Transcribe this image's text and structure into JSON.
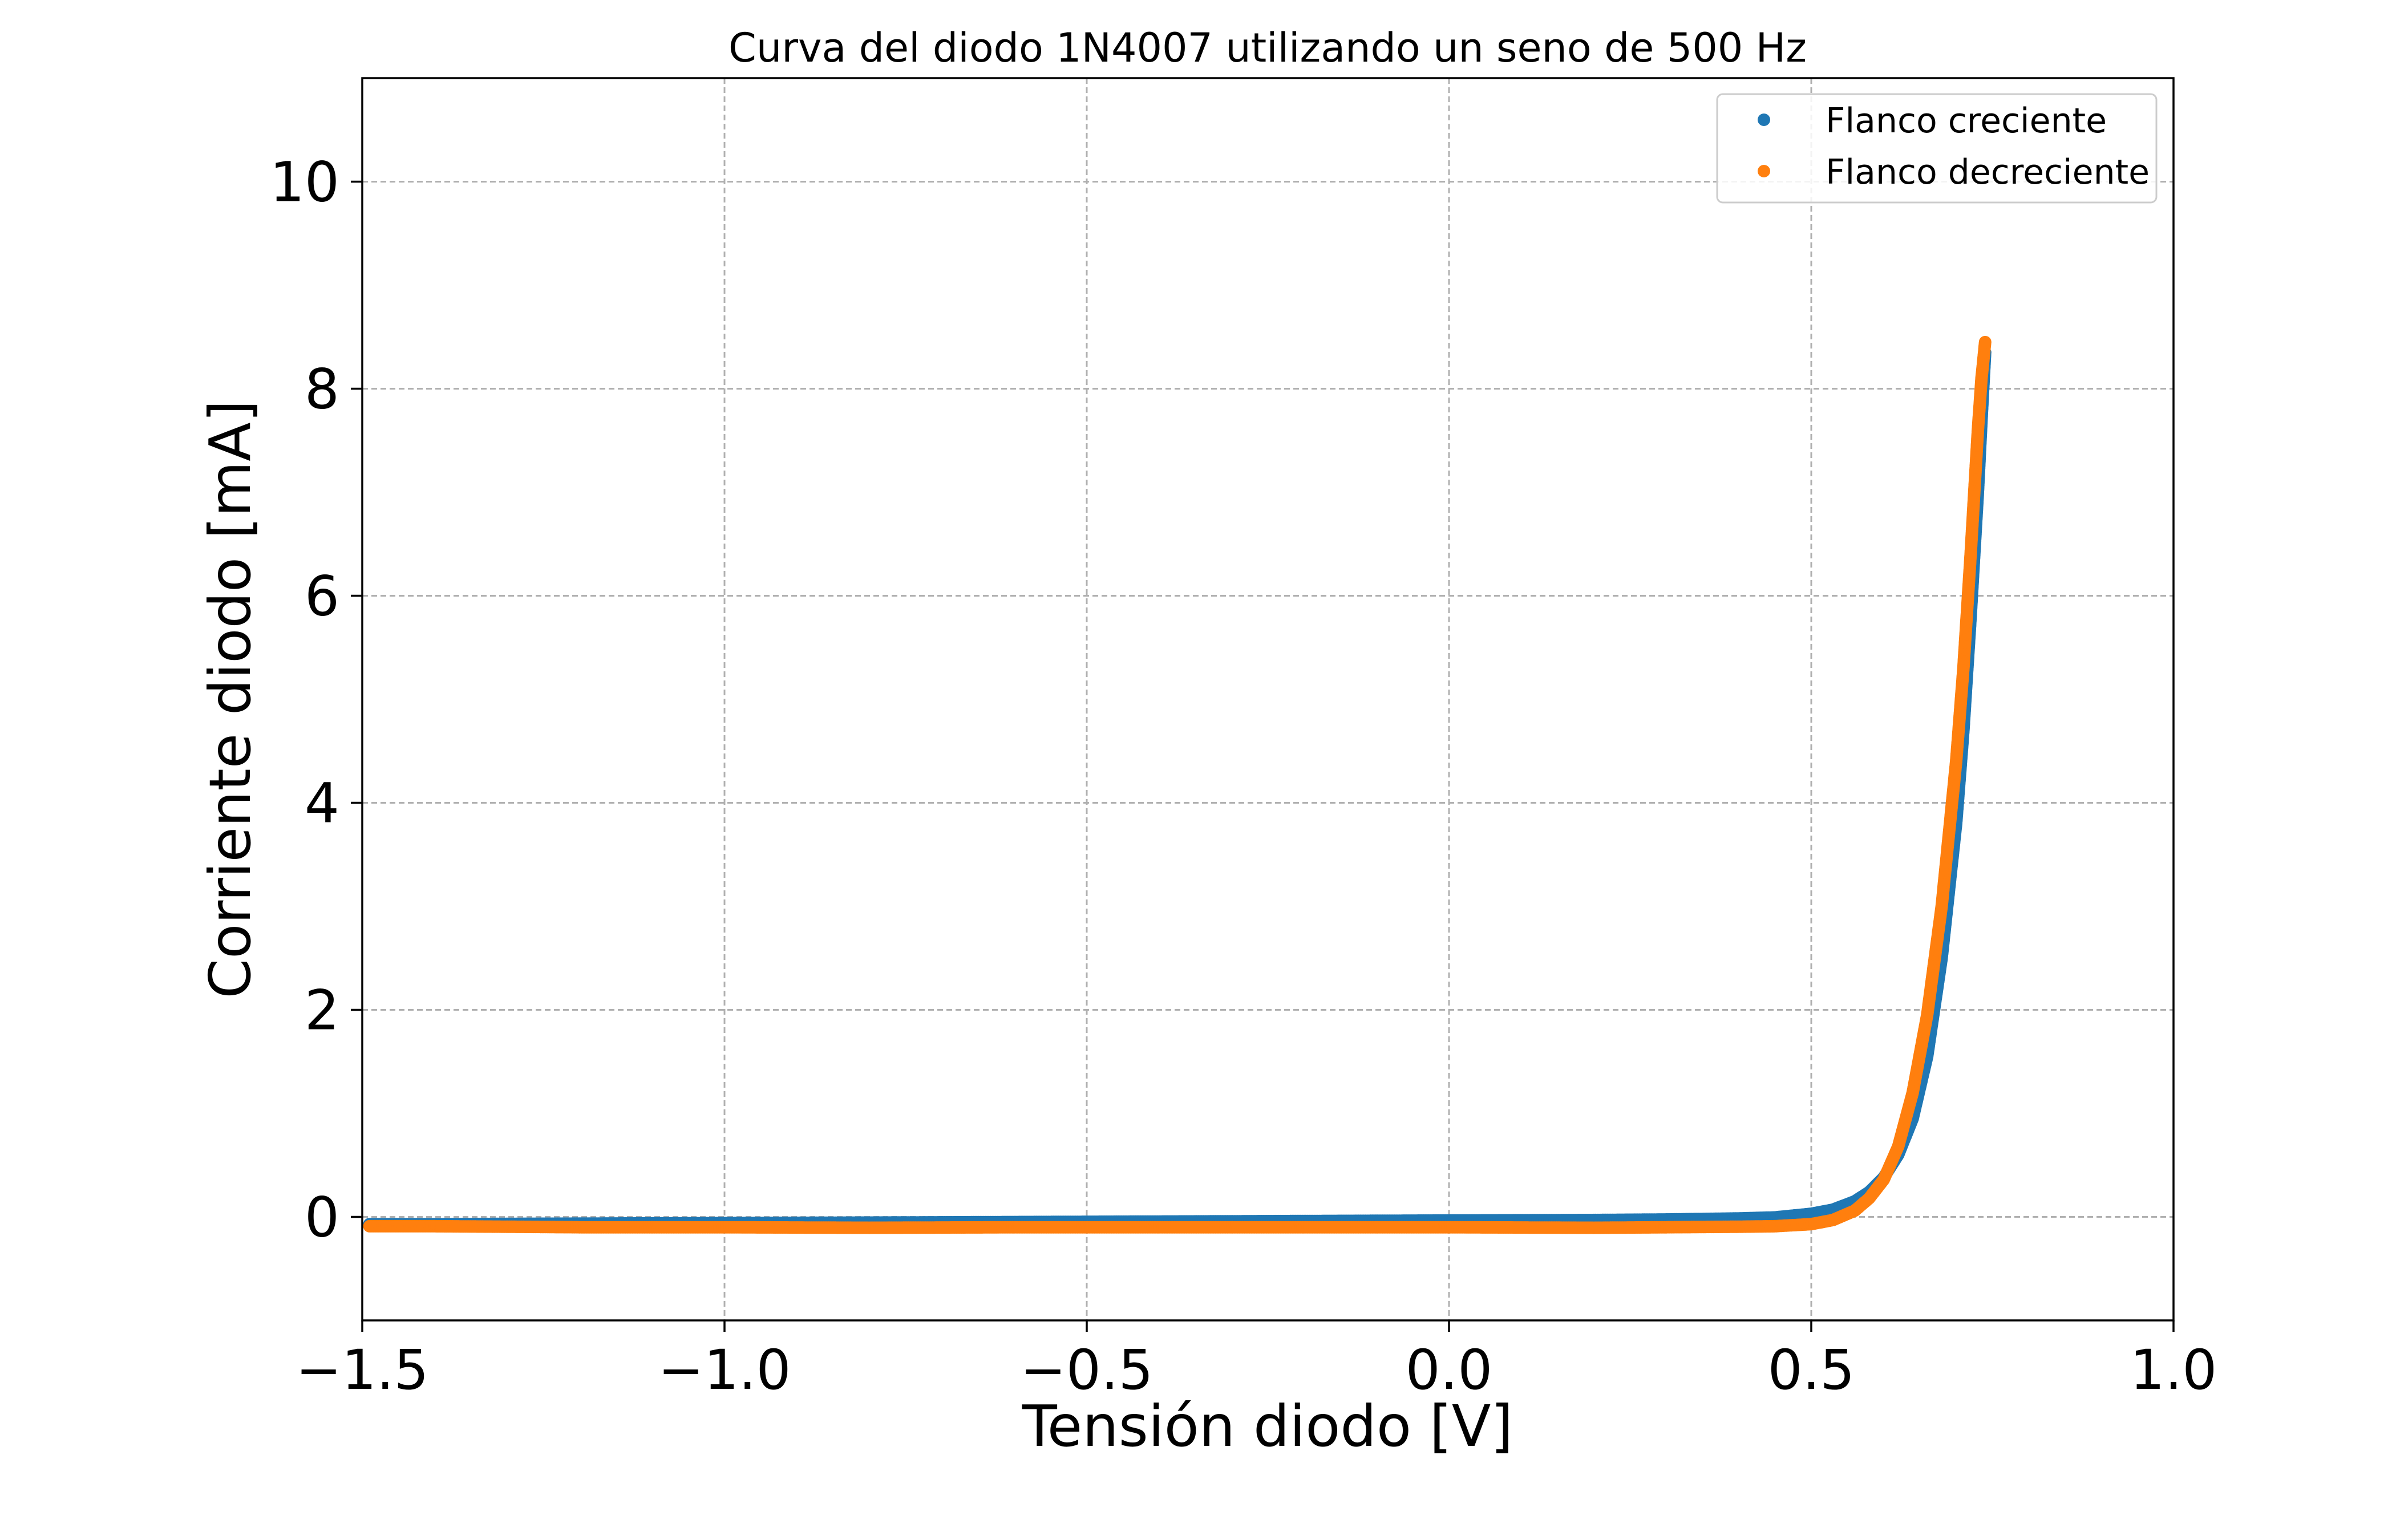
{
  "chart_data": {
    "type": "scatter",
    "title": "Curva del diodo 1N4007 utilizando un seno de 500 Hz",
    "xlabel": "Tensión diodo [V]",
    "ylabel": "Corriente diodo [mA]",
    "xlim": [
      -1.5,
      1.0
    ],
    "ylim": [
      -1.0,
      11.0
    ],
    "xticks": [
      -1.5,
      -1.0,
      -0.5,
      0.0,
      0.5,
      1.0
    ],
    "xtick_labels": [
      "−1.5",
      "−1.0",
      "−0.5",
      "0.0",
      "0.5",
      "1.0"
    ],
    "yticks": [
      0,
      2,
      4,
      6,
      8,
      10
    ],
    "ytick_labels": [
      "0",
      "2",
      "4",
      "6",
      "8",
      "10"
    ],
    "grid": true,
    "legend_position": "top-right",
    "series": [
      {
        "name": "Flanco creciente",
        "color": "#1f77b4",
        "points": [
          [
            -1.49,
            -0.07
          ],
          [
            -1.4,
            -0.07
          ],
          [
            -1.2,
            -0.065
          ],
          [
            -1.0,
            -0.06
          ],
          [
            -0.8,
            -0.055
          ],
          [
            -0.6,
            -0.05
          ],
          [
            -0.4,
            -0.045
          ],
          [
            -0.2,
            -0.04
          ],
          [
            0.0,
            -0.035
          ],
          [
            0.2,
            -0.03
          ],
          [
            0.3,
            -0.025
          ],
          [
            0.4,
            -0.015
          ],
          [
            0.45,
            -0.005
          ],
          [
            0.5,
            0.03
          ],
          [
            0.53,
            0.07
          ],
          [
            0.56,
            0.15
          ],
          [
            0.58,
            0.24
          ],
          [
            0.6,
            0.38
          ],
          [
            0.62,
            0.6
          ],
          [
            0.64,
            0.95
          ],
          [
            0.66,
            1.55
          ],
          [
            0.68,
            2.5
          ],
          [
            0.7,
            3.8
          ],
          [
            0.71,
            4.7
          ],
          [
            0.72,
            5.8
          ],
          [
            0.73,
            7.0
          ],
          [
            0.735,
            7.7
          ],
          [
            0.74,
            8.35
          ]
        ]
      },
      {
        "name": "Flanco decreciente",
        "color": "#ff7f0e",
        "points": [
          [
            -1.49,
            -0.09
          ],
          [
            -1.4,
            -0.09
          ],
          [
            -1.2,
            -0.1
          ],
          [
            -1.0,
            -0.1
          ],
          [
            -0.8,
            -0.105
          ],
          [
            -0.6,
            -0.1
          ],
          [
            -0.4,
            -0.1
          ],
          [
            -0.2,
            -0.1
          ],
          [
            0.0,
            -0.1
          ],
          [
            0.2,
            -0.105
          ],
          [
            0.3,
            -0.1
          ],
          [
            0.4,
            -0.095
          ],
          [
            0.45,
            -0.09
          ],
          [
            0.5,
            -0.07
          ],
          [
            0.53,
            -0.03
          ],
          [
            0.56,
            0.06
          ],
          [
            0.58,
            0.18
          ],
          [
            0.6,
            0.36
          ],
          [
            0.62,
            0.68
          ],
          [
            0.64,
            1.2
          ],
          [
            0.66,
            1.95
          ],
          [
            0.68,
            3.0
          ],
          [
            0.7,
            4.4
          ],
          [
            0.71,
            5.3
          ],
          [
            0.72,
            6.4
          ],
          [
            0.73,
            7.6
          ],
          [
            0.735,
            8.1
          ],
          [
            0.74,
            8.45
          ]
        ]
      }
    ]
  }
}
